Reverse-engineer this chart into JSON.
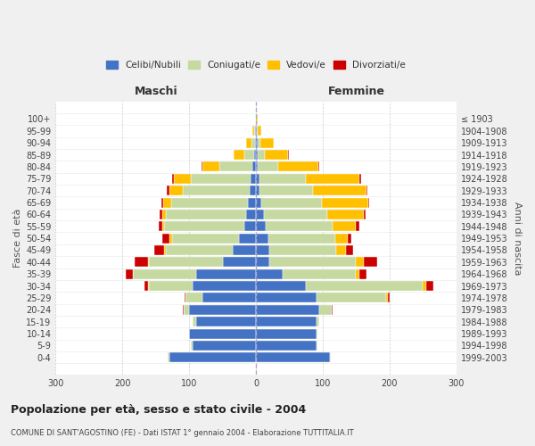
{
  "age_groups": [
    "0-4",
    "5-9",
    "10-14",
    "15-19",
    "20-24",
    "25-29",
    "30-34",
    "35-39",
    "40-44",
    "45-49",
    "50-54",
    "55-59",
    "60-64",
    "65-69",
    "70-74",
    "75-79",
    "80-84",
    "85-89",
    "90-94",
    "95-99",
    "100+"
  ],
  "birth_years": [
    "1999-2003",
    "1994-1998",
    "1989-1993",
    "1984-1988",
    "1979-1983",
    "1974-1978",
    "1969-1973",
    "1964-1968",
    "1959-1963",
    "1954-1958",
    "1949-1953",
    "1944-1948",
    "1939-1943",
    "1934-1938",
    "1929-1933",
    "1924-1928",
    "1919-1923",
    "1914-1918",
    "1909-1913",
    "1904-1908",
    "≤ 1903"
  ],
  "males": {
    "celibi": [
      130,
      95,
      100,
      90,
      100,
      80,
      95,
      90,
      50,
      35,
      25,
      18,
      15,
      12,
      10,
      8,
      5,
      3,
      2,
      1,
      0
    ],
    "coniugati": [
      2,
      2,
      0,
      5,
      8,
      25,
      65,
      95,
      110,
      100,
      100,
      120,
      120,
      115,
      100,
      90,
      50,
      15,
      5,
      2,
      0
    ],
    "vedovi": [
      0,
      0,
      0,
      0,
      0,
      0,
      2,
      0,
      2,
      2,
      5,
      3,
      5,
      12,
      20,
      25,
      25,
      15,
      8,
      2,
      0
    ],
    "divorziati": [
      0,
      0,
      0,
      0,
      2,
      2,
      5,
      10,
      20,
      15,
      10,
      5,
      5,
      3,
      3,
      2,
      1,
      1,
      0,
      0,
      0
    ]
  },
  "females": {
    "celibi": [
      110,
      90,
      90,
      90,
      95,
      90,
      75,
      40,
      20,
      20,
      18,
      15,
      12,
      8,
      5,
      5,
      3,
      3,
      2,
      1,
      0
    ],
    "coniugati": [
      2,
      2,
      2,
      5,
      18,
      105,
      175,
      110,
      130,
      100,
      100,
      100,
      95,
      90,
      80,
      70,
      30,
      10,
      5,
      2,
      0
    ],
    "vedovi": [
      0,
      0,
      0,
      0,
      0,
      2,
      5,
      5,
      12,
      15,
      20,
      35,
      55,
      70,
      80,
      80,
      60,
      35,
      20,
      5,
      2
    ],
    "divorziati": [
      0,
      0,
      0,
      0,
      2,
      3,
      10,
      10,
      20,
      10,
      5,
      5,
      2,
      2,
      2,
      2,
      2,
      1,
      0,
      0,
      0
    ]
  },
  "colors": {
    "celibi": "#4472c4",
    "coniugati": "#c5d9a0",
    "vedovi": "#ffc000",
    "divorziati": "#cc0000"
  },
  "legend_labels": [
    "Celibi/Nubili",
    "Coniugati/e",
    "Vedovi/e",
    "Divorziati/e"
  ],
  "title": "Popolazione per età, sesso e stato civile - 2004",
  "subtitle": "COMUNE DI SANT'AGOSTINO (FE) - Dati ISTAT 1° gennaio 2004 - Elaborazione TUTTITALIA.IT",
  "xlabel_left": "Maschi",
  "xlabel_right": "Femmine",
  "ylabel_left": "Fasce di età",
  "ylabel_right": "Anni di nascita",
  "xlim": 300,
  "bg_color": "#f0f0f0",
  "plot_bg_color": "#ffffff"
}
